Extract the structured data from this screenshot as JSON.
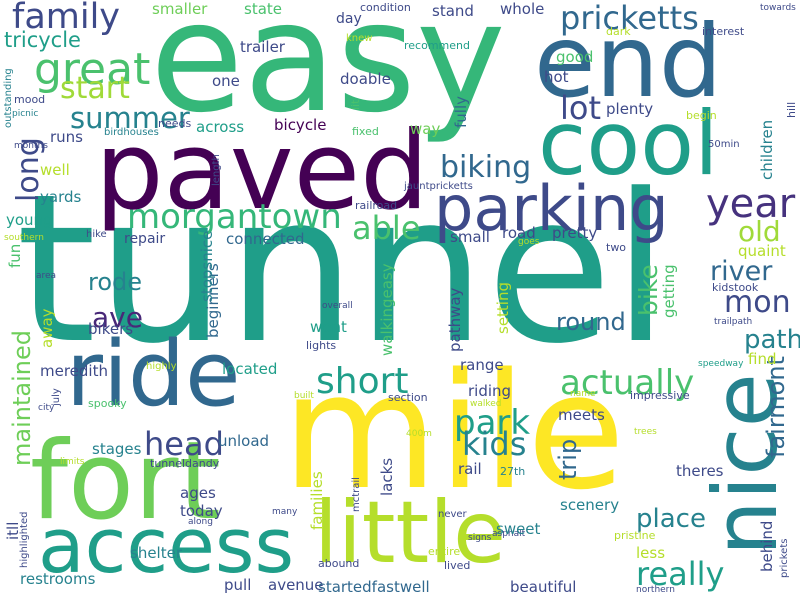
{
  "words": [
    {
      "text": "tunnel",
      "color": "#1f9e89"
    },
    {
      "text": "easy",
      "color": "#35b779"
    },
    {
      "text": "mile",
      "color": "#fde725"
    },
    {
      "text": "paved",
      "color": "#440154"
    },
    {
      "text": "fort",
      "color": "#6ece58"
    },
    {
      "text": "end",
      "color": "#31688e"
    },
    {
      "text": "cool",
      "color": "#1f9e89"
    },
    {
      "text": "ride",
      "color": "#31688e"
    },
    {
      "text": "little",
      "color": "#b5de2b"
    },
    {
      "text": "access",
      "color": "#1f9e89"
    },
    {
      "text": "nice",
      "color": "#26828e"
    },
    {
      "text": "parking",
      "color": "#3e4a89"
    },
    {
      "text": "morgantown",
      "color": "#35b779"
    },
    {
      "text": "family",
      "color": "#3e4a89"
    },
    {
      "text": "great",
      "color": "#4ac16d"
    },
    {
      "text": "pricketts",
      "color": "#31688e"
    },
    {
      "text": "summer",
      "color": "#26828e"
    },
    {
      "text": "short",
      "color": "#1f9e89"
    },
    {
      "text": "actually",
      "color": "#4ac16d"
    },
    {
      "text": "park",
      "color": "#1f9e89"
    },
    {
      "text": "kids",
      "color": "#26828e"
    },
    {
      "text": "head",
      "color": "#3e4a89"
    },
    {
      "text": "year",
      "color": "#46327e"
    },
    {
      "text": "biking",
      "color": "#31688e"
    },
    {
      "text": "really",
      "color": "#1f9e89"
    },
    {
      "text": "place",
      "color": "#26828e"
    },
    {
      "text": "able",
      "color": "#4ac16d"
    },
    {
      "text": "mon",
      "color": "#3e4a89"
    },
    {
      "text": "river",
      "color": "#31688e"
    },
    {
      "text": "old",
      "color": "#a0da39"
    },
    {
      "text": "path",
      "color": "#26828e"
    },
    {
      "text": "start",
      "color": "#a0da39"
    },
    {
      "text": "lot",
      "color": "#3e4a89"
    },
    {
      "text": "ave",
      "color": "#482878"
    },
    {
      "text": "rode",
      "color": "#26828e"
    },
    {
      "text": "round",
      "color": "#31688e"
    },
    {
      "text": "tricycle",
      "color": "#1f9e89"
    },
    {
      "text": "long",
      "color": "#3e4a89"
    },
    {
      "text": "maintained",
      "color": "#6ece58"
    },
    {
      "text": "fairmont",
      "color": "#31688e"
    },
    {
      "text": "bike",
      "color": "#4ac16d"
    },
    {
      "text": "trip",
      "color": "#31688e"
    },
    {
      "text": "smaller",
      "color": "#6ece58"
    },
    {
      "text": "state",
      "color": "#4ac16d"
    },
    {
      "text": "stand",
      "color": "#3e4a89"
    },
    {
      "text": "whole",
      "color": "#3e4a89"
    },
    {
      "text": "condition",
      "color": "#3e4a89"
    },
    {
      "text": "day",
      "color": "#3e4a89"
    },
    {
      "text": "towards",
      "color": "#3e4a89"
    },
    {
      "text": "trailer",
      "color": "#3e4a89"
    },
    {
      "text": "knew",
      "color": "#b5de2b"
    },
    {
      "text": "recommend",
      "color": "#1f9e89"
    },
    {
      "text": "dark",
      "color": "#b5de2b"
    },
    {
      "text": "interest",
      "color": "#3e4a89"
    },
    {
      "text": "good",
      "color": "#4ac16d"
    },
    {
      "text": "doable",
      "color": "#3e4a89"
    },
    {
      "text": "hot",
      "color": "#3e4a89"
    },
    {
      "text": "one",
      "color": "#3e4a89"
    },
    {
      "text": "fully",
      "color": "#31688e"
    },
    {
      "text": "plenty",
      "color": "#3e4a89"
    },
    {
      "text": "lit",
      "color": "#4ac16d"
    },
    {
      "text": "way",
      "color": "#6ece58"
    },
    {
      "text": "across",
      "color": "#1f9e89"
    },
    {
      "text": "runs",
      "color": "#3e4a89"
    },
    {
      "text": "needs",
      "color": "#3e4a89"
    },
    {
      "text": "begin",
      "color": "#b5de2b"
    },
    {
      "text": "bicycle",
      "color": "#440154"
    },
    {
      "text": "fixed",
      "color": "#4ac16d"
    },
    {
      "text": "birdhouses",
      "color": "#26828e"
    },
    {
      "text": "children",
      "color": "#26828e"
    },
    {
      "text": "hill",
      "color": "#3e4a89"
    },
    {
      "text": "mood",
      "color": "#3e4a89"
    },
    {
      "text": "outstanding",
      "color": "#26828e"
    },
    {
      "text": "picnic",
      "color": "#26828e"
    },
    {
      "text": "months",
      "color": "#3e4a89"
    },
    {
      "text": "well",
      "color": "#b5de2b"
    },
    {
      "text": "50min",
      "color": "#3e4a89"
    },
    {
      "text": "length",
      "color": "#3e4a89"
    },
    {
      "text": "jauntpricketts",
      "color": "#3e4a89"
    },
    {
      "text": "railroad",
      "color": "#3e4a89"
    },
    {
      "text": "yards",
      "color": "#26828e"
    },
    {
      "text": "young",
      "color": "#1f9e89"
    },
    {
      "text": "hike",
      "color": "#3e4a89"
    },
    {
      "text": "repair",
      "color": "#3e4a89"
    },
    {
      "text": "connected",
      "color": "#31688e"
    },
    {
      "text": "small",
      "color": "#3e4a89"
    },
    {
      "text": "road",
      "color": "#3e4a89"
    },
    {
      "text": "pretty",
      "color": "#3e4a89"
    },
    {
      "text": "goes",
      "color": "#b5de2b"
    },
    {
      "text": "two",
      "color": "#3e4a89"
    },
    {
      "text": "quaint",
      "color": "#b5de2b"
    },
    {
      "text": "southern",
      "color": "#b5de2b"
    },
    {
      "text": "fun",
      "color": "#4ac16d"
    },
    {
      "text": "area",
      "color": "#3e4a89"
    },
    {
      "text": "beginners",
      "color": "#31688e"
    },
    {
      "text": "stopsnice",
      "color": "#26828e"
    },
    {
      "text": "walkingeasy",
      "color": "#4ac16d"
    },
    {
      "text": "setting",
      "color": "#b5de2b"
    },
    {
      "text": "getting",
      "color": "#4ac16d"
    },
    {
      "text": "kidstook",
      "color": "#3e4a89"
    },
    {
      "text": "trailpath",
      "color": "#3e4a89"
    },
    {
      "text": "bikers",
      "color": "#3e4a89"
    },
    {
      "text": "away",
      "color": "#b5de2b"
    },
    {
      "text": "went",
      "color": "#1f9e89"
    },
    {
      "text": "overall",
      "color": "#3e4a89"
    },
    {
      "text": "lights",
      "color": "#3e4a89"
    },
    {
      "text": "pathway",
      "color": "#3e4a89"
    },
    {
      "text": "meredith",
      "color": "#3e4a89"
    },
    {
      "text": "range",
      "color": "#3e4a89"
    },
    {
      "text": "located",
      "color": "#1f9e89"
    },
    {
      "text": "find",
      "color": "#b5de2b"
    },
    {
      "text": "highly",
      "color": "#b5de2b"
    },
    {
      "text": "riding",
      "color": "#3e4a89"
    },
    {
      "text": "speedway",
      "color": "#1f9e89"
    },
    {
      "text": "july",
      "color": "#3e4a89"
    },
    {
      "text": "city",
      "color": "#3e4a89"
    },
    {
      "text": "spooky",
      "color": "#4ac16d"
    },
    {
      "text": "built",
      "color": "#b5de2b"
    },
    {
      "text": "section",
      "color": "#3e4a89"
    },
    {
      "text": "name",
      "color": "#b5de2b"
    },
    {
      "text": "impressive",
      "color": "#3e4a89"
    },
    {
      "text": "walked",
      "color": "#b5de2b"
    },
    {
      "text": "meets",
      "color": "#3e4a89"
    },
    {
      "text": "400m",
      "color": "#b5de2b"
    },
    {
      "text": "stages",
      "color": "#26828e"
    },
    {
      "text": "unload",
      "color": "#31688e"
    },
    {
      "text": "limits",
      "color": "#b5de2b"
    },
    {
      "text": "tunneldandy",
      "color": "#3e4a89"
    },
    {
      "text": "mctrail",
      "color": "#3e4a89"
    },
    {
      "text": "rail",
      "color": "#3e4a89"
    },
    {
      "text": "27th",
      "color": "#26828e"
    },
    {
      "text": "theres",
      "color": "#3e4a89"
    },
    {
      "text": "trees",
      "color": "#b5de2b"
    },
    {
      "text": "lacks",
      "color": "#3e4a89"
    },
    {
      "text": "ages",
      "color": "#3e4a89"
    },
    {
      "text": "families",
      "color": "#b5de2b"
    },
    {
      "text": "today",
      "color": "#3e4a89"
    },
    {
      "text": "along",
      "color": "#3e4a89"
    },
    {
      "text": "many",
      "color": "#3e4a89"
    },
    {
      "text": "scenery",
      "color": "#26828e"
    },
    {
      "text": "itll",
      "color": "#3e4a89"
    },
    {
      "text": "highlighted",
      "color": "#3e4a89"
    },
    {
      "text": "never",
      "color": "#3e4a89"
    },
    {
      "text": "signs",
      "color": "#3e4a89"
    },
    {
      "text": "asphalt",
      "color": "#3e4a89"
    },
    {
      "text": "sweet",
      "color": "#26828e"
    },
    {
      "text": "less",
      "color": "#b5de2b"
    },
    {
      "text": "pristine",
      "color": "#b5de2b"
    },
    {
      "text": "behind",
      "color": "#3e4a89"
    },
    {
      "text": "prickets",
      "color": "#3e4a89"
    },
    {
      "text": "restrooms",
      "color": "#26828e"
    },
    {
      "text": "shelter",
      "color": "#26828e"
    },
    {
      "text": "pull",
      "color": "#3e4a89"
    },
    {
      "text": "avenue",
      "color": "#3e4a89"
    },
    {
      "text": "entire",
      "color": "#b5de2b"
    },
    {
      "text": "lived",
      "color": "#3e4a89"
    },
    {
      "text": "abound",
      "color": "#3e4a89"
    },
    {
      "text": "startedfastwell",
      "color": "#31688e"
    },
    {
      "text": "beautiful",
      "color": "#3e4a89"
    },
    {
      "text": "northern",
      "color": "#3e4a89"
    }
  ]
}
